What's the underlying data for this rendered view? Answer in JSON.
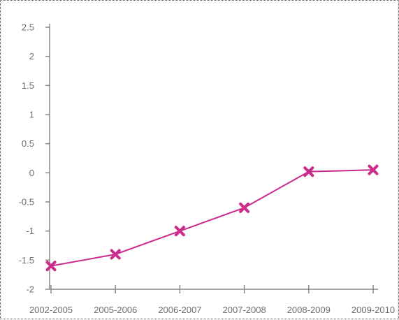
{
  "chart_data": {
    "type": "line",
    "categories": [
      "2002-2005",
      "2005-2006",
      "2006-2007",
      "2007-2008",
      "2008-2009",
      "2009-2010"
    ],
    "series": [
      {
        "values": [
          -1.6,
          -1.4,
          -1.0,
          -0.6,
          0.02,
          0.05
        ]
      }
    ],
    "yticks": [
      "2.5",
      "2",
      "1.5",
      "1",
      "0.5",
      "0",
      "-0.5",
      "-1",
      "-1.5",
      "-2"
    ],
    "ylim": [
      -2,
      2.5
    ],
    "grid": false,
    "legend": "none",
    "line_color": "#cc2a8c",
    "axis_color": "#8a8a8a",
    "marker": "x"
  }
}
